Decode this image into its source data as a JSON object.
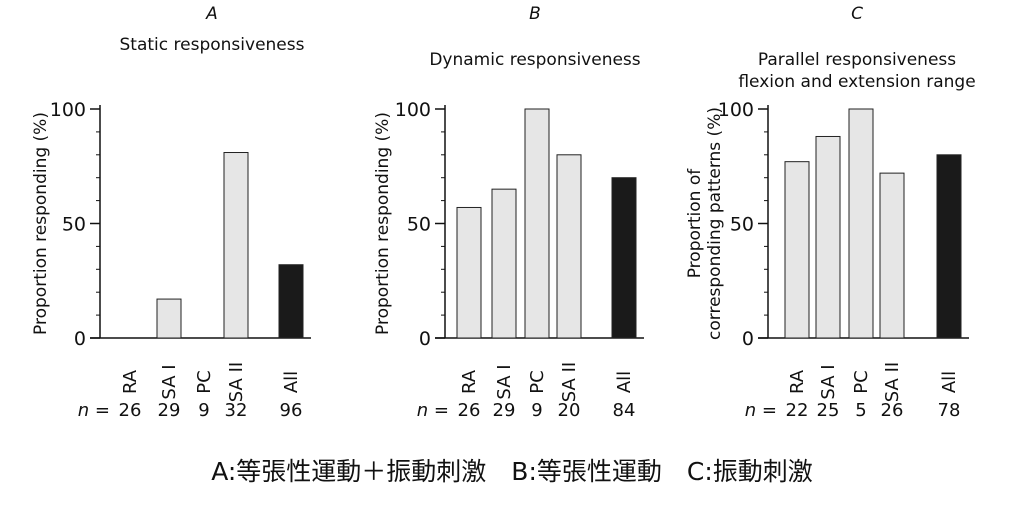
{
  "chart_data": [
    {
      "type": "bar",
      "panel_letter": "A",
      "title": "Static responsiveness",
      "ylabel": [
        "Proportion responding (%)"
      ],
      "ylim": [
        0,
        100
      ],
      "yticks": [
        "0",
        "50",
        "100"
      ],
      "categories": [
        "RA",
        "SA I",
        "PC",
        "SA II",
        "All"
      ],
      "values": [
        0,
        17,
        0,
        81,
        32
      ],
      "n_label": "n =",
      "n": [
        "26",
        "29",
        "9",
        "32",
        "96"
      ],
      "colors": [
        "#e6e6e6",
        "#e6e6e6",
        "#e6e6e6",
        "#e6e6e6",
        "#1a1a1a"
      ]
    },
    {
      "type": "bar",
      "panel_letter": "B",
      "title": "Dynamic responsiveness",
      "ylabel": [
        "Proportion responding (%)"
      ],
      "ylim": [
        0,
        100
      ],
      "yticks": [
        "0",
        "50",
        "100"
      ],
      "categories": [
        "RA",
        "SA I",
        "PC",
        "SA II",
        "All"
      ],
      "values": [
        57,
        65,
        100,
        80,
        70
      ],
      "n_label": "n =",
      "n": [
        "26",
        "29",
        "9",
        "20",
        "84"
      ],
      "colors": [
        "#e6e6e6",
        "#e6e6e6",
        "#e6e6e6",
        "#e6e6e6",
        "#1a1a1a"
      ]
    },
    {
      "type": "bar",
      "panel_letter": "C",
      "title": "Parallel responsiveness",
      "subtitle": "flexion and extension range",
      "ylabel": [
        "Proportion of",
        "corresponding patterns (%)"
      ],
      "ylim": [
        0,
        100
      ],
      "yticks": [
        "0",
        "50",
        "100"
      ],
      "categories": [
        "RA",
        "SA I",
        "PC",
        "SA II",
        "All"
      ],
      "values": [
        77,
        88,
        100,
        72,
        80
      ],
      "n_label": "n =",
      "n": [
        "22",
        "25",
        "5",
        "26",
        "78"
      ],
      "colors": [
        "#e6e6e6",
        "#e6e6e6",
        "#e6e6e6",
        "#e6e6e6",
        "#1a1a1a"
      ]
    }
  ],
  "caption": "A:等張性運動＋振動刺激　B:等張性運動　C:振動刺激"
}
